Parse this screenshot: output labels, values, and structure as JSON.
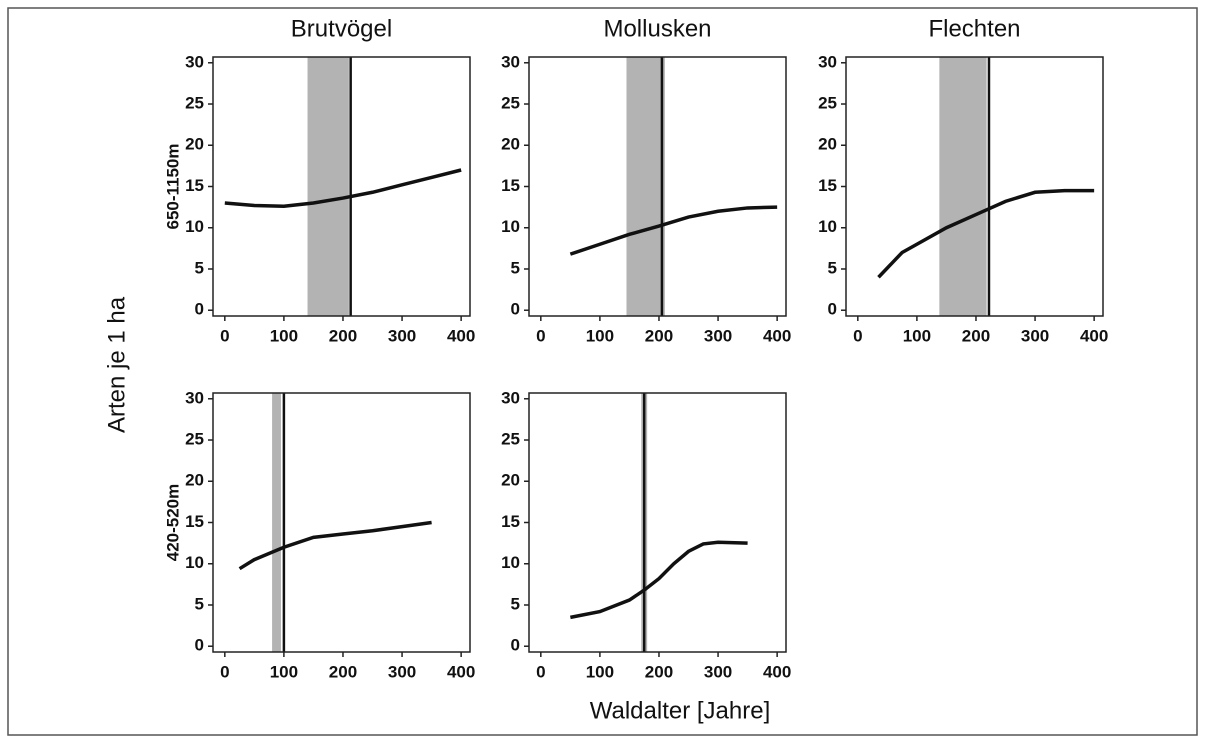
{
  "figure": {
    "xlabel": "Waldalter [Jahre]",
    "ylabel": "Arten je 1 ha"
  },
  "chart_data": [
    {
      "type": "line",
      "title": "Brutvögel",
      "ylabel": "650-1150m",
      "x": [
        0,
        50,
        100,
        150,
        200,
        250,
        300,
        350,
        400
      ],
      "values": [
        13,
        12.7,
        12.6,
        13,
        13.6,
        14.3,
        15.2,
        16.1,
        17
      ],
      "band": [
        140,
        210
      ],
      "vline": 213,
      "xlim": [
        -20,
        415
      ],
      "ylim": [
        -0.7,
        30.7
      ],
      "xticks": [
        0,
        100,
        200,
        300,
        400
      ],
      "yticks": [
        0,
        5,
        10,
        15,
        20,
        25,
        30
      ]
    },
    {
      "type": "line",
      "title": "Mollusken",
      "x": [
        50,
        100,
        150,
        200,
        250,
        300,
        350,
        400
      ],
      "values": [
        6.8,
        8,
        9.2,
        10.2,
        11.3,
        12,
        12.4,
        12.5
      ],
      "band": [
        145,
        210
      ],
      "vline": 205,
      "xlim": [
        -20,
        415
      ],
      "ylim": [
        -0.7,
        30.7
      ],
      "xticks": [
        0,
        100,
        200,
        300,
        400
      ],
      "yticks": [
        0,
        5,
        10,
        15,
        20,
        25,
        30
      ]
    },
    {
      "type": "line",
      "title": "Flechten",
      "x": [
        35,
        75,
        100,
        150,
        200,
        250,
        300,
        350,
        400
      ],
      "values": [
        4,
        7,
        8,
        10,
        11.6,
        13.2,
        14.3,
        14.5,
        14.5
      ],
      "band": [
        138,
        218
      ],
      "vline": 222,
      "xlim": [
        -20,
        415
      ],
      "ylim": [
        -0.7,
        30.7
      ],
      "xticks": [
        0,
        100,
        200,
        300,
        400
      ],
      "yticks": [
        0,
        5,
        10,
        15,
        20,
        25,
        30
      ]
    },
    {
      "type": "line",
      "ylabel": "420-520m",
      "x": [
        25,
        50,
        100,
        150,
        200,
        250,
        300,
        350
      ],
      "values": [
        9.4,
        10.5,
        12,
        13.2,
        13.6,
        14,
        14.5,
        15
      ],
      "band": [
        80,
        95
      ],
      "vline": 100,
      "xlim": [
        -20,
        415
      ],
      "ylim": [
        -0.7,
        30.7
      ],
      "xticks": [
        0,
        100,
        200,
        300,
        400
      ],
      "yticks": [
        0,
        5,
        10,
        15,
        20,
        25,
        30
      ]
    },
    {
      "type": "line",
      "x": [
        50,
        100,
        150,
        175,
        200,
        225,
        250,
        275,
        300,
        350
      ],
      "values": [
        3.5,
        4.2,
        5.6,
        6.8,
        8.2,
        10,
        11.5,
        12.4,
        12.6,
        12.5
      ],
      "band": [
        170,
        180
      ],
      "vline": 175,
      "xlim": [
        -20,
        415
      ],
      "ylim": [
        -0.7,
        30.7
      ],
      "xticks": [
        0,
        100,
        200,
        300,
        400
      ],
      "yticks": [
        0,
        5,
        10,
        15,
        20,
        25,
        30
      ]
    }
  ]
}
